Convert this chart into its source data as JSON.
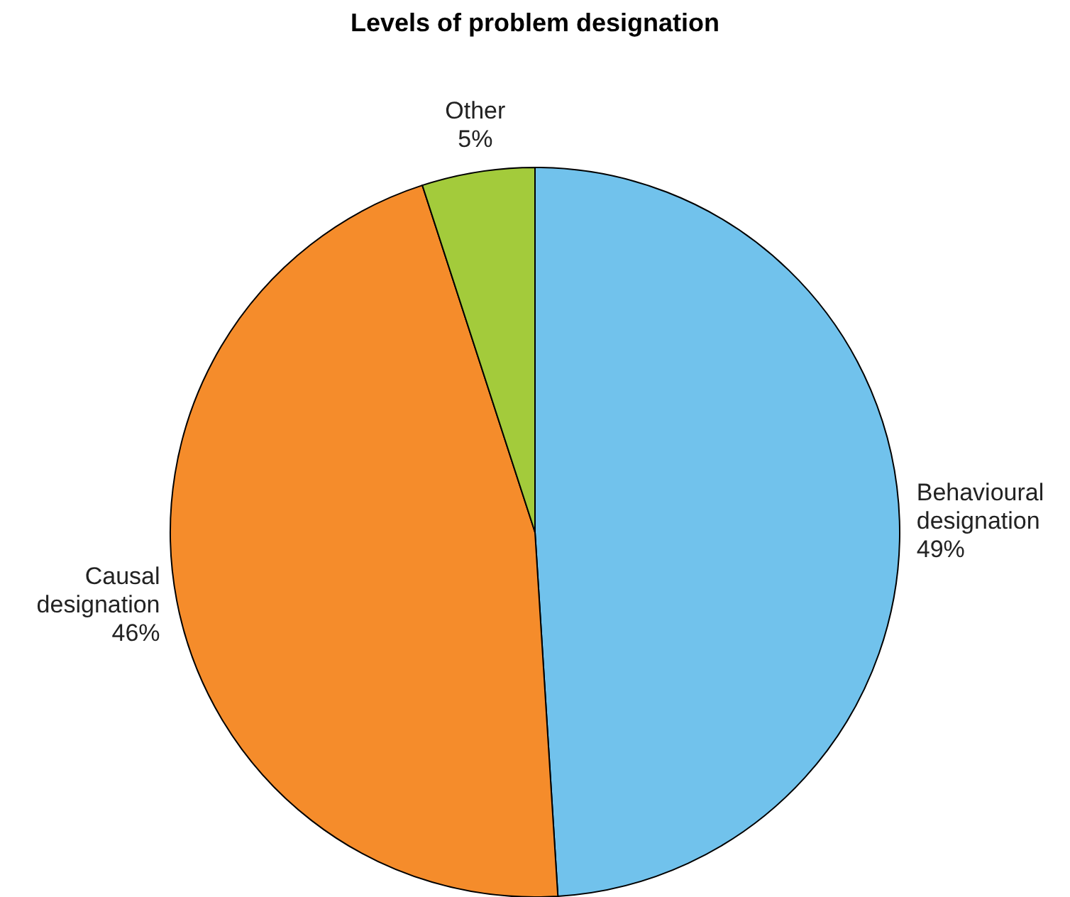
{
  "chart_data": {
    "type": "pie",
    "title": "Levels of problem designation",
    "categories": [
      "Behavioural designation",
      "Causal designation",
      "Other"
    ],
    "values": [
      49,
      46,
      5
    ],
    "colors": [
      "#71c2ec",
      "#f58c2b",
      "#a3cb3b"
    ],
    "value_labels": [
      "49%",
      "46%",
      "5%"
    ]
  }
}
